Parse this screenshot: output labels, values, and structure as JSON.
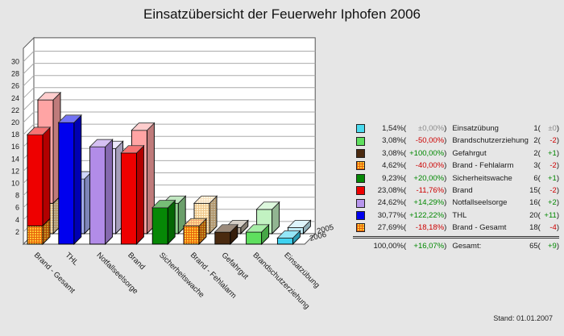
{
  "title": "Einsatzübersicht der Feuerwehr Iphofen 2006",
  "footer": {
    "stand": "Stand: 01.01.2007"
  },
  "colors": {
    "page_bg": "#E6E6E6",
    "plot_bg": "#FFFFFF",
    "grid": "#ABABAB",
    "axis": "#3A3A3A",
    "text": "#1A1A1A",
    "positive": "#008800",
    "negative": "#CC0000",
    "neutral": "#8C8C8C",
    "checker_base": "#FFC832",
    "checker_line": "#E8600A",
    "checker_light_base": "#FFEFCB",
    "checker_light_line": "#EFC78C"
  },
  "chart_data": {
    "type": "bar",
    "projection": "3d",
    "title": "Einsatzübersicht der Feuerwehr Iphofen 2006",
    "xlabel": "",
    "ylabel": "",
    "ylim": [
      0,
      32
    ],
    "yticks": [
      2,
      4,
      6,
      8,
      10,
      12,
      14,
      16,
      18,
      20,
      22,
      24,
      26,
      28,
      30
    ],
    "grid": true,
    "depth_rows": [
      "2005",
      "2006"
    ],
    "categories": [
      "Brand - Gesamt",
      "THL",
      "Notfallseelsorge",
      "Brand",
      "Sicherheitswache",
      "Brand - Fehlalarm",
      "Gefahrgut",
      "Brandschutzerziehung",
      "Einsatzübung"
    ],
    "series": [
      {
        "name": "2006",
        "values": [
          18,
          20,
          16,
          15,
          6,
          3,
          2,
          2,
          1
        ]
      },
      {
        "name": "2005",
        "values": [
          22,
          9,
          14,
          17,
          5,
          5,
          1,
          4,
          1
        ]
      }
    ],
    "bars": [
      {
        "category": "Brand - Gesamt",
        "front": [
          {
            "value": 3,
            "fill": "checker"
          },
          {
            "value": 15,
            "fill": "#EE0000"
          }
        ],
        "back": [
          {
            "value": 5,
            "fill": "checkerLight"
          },
          {
            "value": 17,
            "fill": "#FFA4A4"
          }
        ]
      },
      {
        "category": "THL",
        "front": [
          {
            "value": 20,
            "fill": "#0000EE"
          }
        ],
        "back": [
          {
            "value": 9,
            "fill": "#A8B2F6"
          }
        ]
      },
      {
        "category": "Notfallseelsorge",
        "front": [
          {
            "value": 16,
            "fill": "#B28CE8"
          }
        ],
        "back": [
          {
            "value": 14,
            "fill": "#DCD2F8"
          }
        ]
      },
      {
        "category": "Brand",
        "front": [
          {
            "value": 15,
            "fill": "#EE0000"
          }
        ],
        "back": [
          {
            "value": 17,
            "fill": "#FFA4A4"
          }
        ]
      },
      {
        "category": "Sicherheitswache",
        "front": [
          {
            "value": 6,
            "fill": "#068806"
          }
        ],
        "back": [
          {
            "value": 5,
            "fill": "#8FD48F"
          }
        ]
      },
      {
        "category": "Brand - Fehlalarm",
        "front": [
          {
            "value": 3,
            "fill": "checker"
          }
        ],
        "back": [
          {
            "value": 5,
            "fill": "checkerLight"
          }
        ]
      },
      {
        "category": "Gefahrgut",
        "front": [
          {
            "value": 2,
            "fill": "#4A2A10"
          }
        ],
        "back": [
          {
            "value": 1,
            "fill": "#B4A89A"
          }
        ]
      },
      {
        "category": "Brandschutzerziehung",
        "front": [
          {
            "value": 2,
            "fill": "#5FDF5F"
          }
        ],
        "back": [
          {
            "value": 4,
            "fill": "#C2F2C2"
          }
        ]
      },
      {
        "category": "Einsatzübung",
        "front": [
          {
            "value": 1,
            "fill": "#3ED2F0"
          }
        ],
        "back": [
          {
            "value": 1,
            "fill": "#C2ECF8"
          }
        ]
      }
    ]
  },
  "legend": {
    "rows": [
      {
        "swatch": "#4ADAEE",
        "pct": "1,54%",
        "change": "±0,00%",
        "sign": "neutral",
        "label": "Einsatzübung",
        "count": "1",
        "count_change": "±0"
      },
      {
        "swatch": "#5FDF5F",
        "pct": "3,08%",
        "change": "-50,00%",
        "sign": "negative",
        "label": "Brandschutzerziehung",
        "count": "2",
        "count_change": "-2"
      },
      {
        "swatch": "#4A2A10",
        "pct": "3,08%",
        "change": "+100,00%",
        "sign": "positive",
        "label": "Gefahrgut",
        "count": "2",
        "count_change": "+1"
      },
      {
        "swatch": "checker",
        "pct": "4,62%",
        "change": "-40,00%",
        "sign": "negative",
        "label": "Brand - Fehlalarm",
        "count": "3",
        "count_change": "-2"
      },
      {
        "swatch": "#068806",
        "pct": "9,23%",
        "change": "+20,00%",
        "sign": "positive",
        "label": "Sicherheitswache",
        "count": "6",
        "count_change": "+1"
      },
      {
        "swatch": "#EE0000",
        "pct": "23,08%",
        "change": "-11,76%",
        "sign": "negative",
        "label": "Brand",
        "count": "15",
        "count_change": "-2"
      },
      {
        "swatch": "#B795EC",
        "pct": "24,62%",
        "change": "+14,29%",
        "sign": "positive",
        "label": "Notfallseelsorge",
        "count": "16",
        "count_change": "+2"
      },
      {
        "swatch": "#0000EE",
        "pct": "30,77%",
        "change": "+122,22%",
        "sign": "positive",
        "label": "THL",
        "count": "20",
        "count_change": "+11"
      },
      {
        "swatch": "checker",
        "pct": "27,69%",
        "change": "-18,18%",
        "sign": "negative",
        "label": "Brand - Gesamt",
        "count": "18",
        "count_change": "-4"
      }
    ],
    "total": {
      "pct": "100,00%",
      "change": "+16,07%",
      "sign": "positive",
      "label": "Gesamt:",
      "count": "65",
      "count_change": "+9"
    }
  }
}
